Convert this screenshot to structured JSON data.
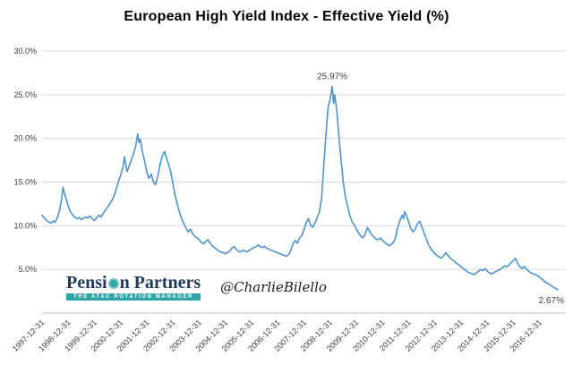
{
  "chart_data": {
    "type": "line",
    "title": "European High Yield Index - Effective Yield (%)",
    "xlabel": "",
    "ylabel": "",
    "ylim": [
      0,
      30
    ],
    "xlim": [
      1998.0,
      2018.0
    ],
    "grid": true,
    "legend": "none",
    "line_color": "#4F93CE",
    "grid_color": "#D9D9D9",
    "axis_color": "#BFBFBF",
    "tick_label_color": "#404040",
    "y_tick_labels": [
      "5.0%",
      "10.0%",
      "15.0%",
      "20.0%",
      "25.0%",
      "30.0%"
    ],
    "x_tick_labels": [
      "1997-12-31",
      "1998-12-31",
      "1999-12-31",
      "2000-12-31",
      "2001-12-31",
      "2002-12-31",
      "2003-12-31",
      "2004-12-31",
      "2005-12-31",
      "2006-12-31",
      "2007-12-31",
      "2008-12-31",
      "2009-12-31",
      "2010-12-31",
      "2011-12-31",
      "2012-12-31",
      "2013-12-31",
      "2014-12-31",
      "2015-12-31",
      "2016-12-31"
    ],
    "annotations": [
      {
        "text": "25.97%",
        "x": 2009.08,
        "y": 25.97,
        "position": "above"
      },
      {
        "text": "2.67%",
        "x": 2017.7,
        "y": 2.67,
        "position": "below-right"
      }
    ],
    "series": [
      {
        "name": "Effective Yield",
        "color": "#4F93CE",
        "points": [
          [
            1998.0,
            11.2
          ],
          [
            1998.08,
            10.9
          ],
          [
            1998.17,
            10.6
          ],
          [
            1998.25,
            10.45
          ],
          [
            1998.33,
            10.3
          ],
          [
            1998.42,
            10.55
          ],
          [
            1998.5,
            10.4
          ],
          [
            1998.58,
            10.9
          ],
          [
            1998.67,
            11.8
          ],
          [
            1998.75,
            13.1
          ],
          [
            1998.8,
            14.4
          ],
          [
            1998.85,
            13.7
          ],
          [
            1998.92,
            13.1
          ],
          [
            1999.0,
            12.2
          ],
          [
            1999.08,
            11.6
          ],
          [
            1999.17,
            11.2
          ],
          [
            1999.25,
            11.0
          ],
          [
            1999.33,
            10.8
          ],
          [
            1999.42,
            10.95
          ],
          [
            1999.5,
            10.7
          ],
          [
            1999.58,
            10.85
          ],
          [
            1999.67,
            11.0
          ],
          [
            1999.75,
            10.9
          ],
          [
            1999.83,
            11.1
          ],
          [
            1999.92,
            10.8
          ],
          [
            2000.0,
            10.6
          ],
          [
            2000.08,
            10.9
          ],
          [
            2000.17,
            11.2
          ],
          [
            2000.25,
            11.0
          ],
          [
            2000.33,
            11.4
          ],
          [
            2000.42,
            11.8
          ],
          [
            2000.5,
            12.1
          ],
          [
            2000.58,
            12.5
          ],
          [
            2000.67,
            12.9
          ],
          [
            2000.75,
            13.4
          ],
          [
            2000.83,
            14.2
          ],
          [
            2000.92,
            15.1
          ],
          [
            2001.0,
            15.8
          ],
          [
            2001.08,
            16.6
          ],
          [
            2001.15,
            17.9
          ],
          [
            2001.21,
            16.7
          ],
          [
            2001.25,
            16.2
          ],
          [
            2001.33,
            16.9
          ],
          [
            2001.42,
            17.6
          ],
          [
            2001.5,
            18.3
          ],
          [
            2001.58,
            19.2
          ],
          [
            2001.65,
            20.5
          ],
          [
            2001.7,
            19.5
          ],
          [
            2001.75,
            19.9
          ],
          [
            2001.83,
            18.5
          ],
          [
            2001.92,
            17.3
          ],
          [
            2002.0,
            16.1
          ],
          [
            2002.08,
            15.4
          ],
          [
            2002.17,
            15.9
          ],
          [
            2002.25,
            15.0
          ],
          [
            2002.33,
            14.7
          ],
          [
            2002.42,
            15.7
          ],
          [
            2002.5,
            16.9
          ],
          [
            2002.58,
            17.9
          ],
          [
            2002.67,
            18.5
          ],
          [
            2002.75,
            17.8
          ],
          [
            2002.83,
            17.0
          ],
          [
            2002.92,
            16.1
          ],
          [
            2003.0,
            14.7
          ],
          [
            2003.08,
            13.5
          ],
          [
            2003.17,
            12.4
          ],
          [
            2003.25,
            11.5
          ],
          [
            2003.33,
            10.8
          ],
          [
            2003.42,
            10.2
          ],
          [
            2003.5,
            9.7
          ],
          [
            2003.58,
            9.3
          ],
          [
            2003.67,
            9.6
          ],
          [
            2003.75,
            9.1
          ],
          [
            2003.83,
            8.8
          ],
          [
            2003.92,
            8.6
          ],
          [
            2004.0,
            8.4
          ],
          [
            2004.08,
            8.1
          ],
          [
            2004.17,
            7.9
          ],
          [
            2004.25,
            8.2
          ],
          [
            2004.33,
            8.4
          ],
          [
            2004.42,
            8.0
          ],
          [
            2004.5,
            7.7
          ],
          [
            2004.58,
            7.5
          ],
          [
            2004.67,
            7.3
          ],
          [
            2004.75,
            7.1
          ],
          [
            2004.83,
            7.0
          ],
          [
            2004.92,
            6.9
          ],
          [
            2005.0,
            6.8
          ],
          [
            2005.08,
            6.95
          ],
          [
            2005.17,
            7.1
          ],
          [
            2005.25,
            7.45
          ],
          [
            2005.33,
            7.6
          ],
          [
            2005.42,
            7.3
          ],
          [
            2005.5,
            7.1
          ],
          [
            2005.58,
            7.0
          ],
          [
            2005.67,
            7.2
          ],
          [
            2005.75,
            7.1
          ],
          [
            2005.83,
            7.0
          ],
          [
            2005.92,
            7.2
          ],
          [
            2006.0,
            7.35
          ],
          [
            2006.08,
            7.5
          ],
          [
            2006.17,
            7.6
          ],
          [
            2006.25,
            7.8
          ],
          [
            2006.33,
            7.6
          ],
          [
            2006.42,
            7.5
          ],
          [
            2006.5,
            7.65
          ],
          [
            2006.58,
            7.4
          ],
          [
            2006.67,
            7.3
          ],
          [
            2006.75,
            7.2
          ],
          [
            2006.83,
            7.1
          ],
          [
            2006.92,
            7.0
          ],
          [
            2007.0,
            6.9
          ],
          [
            2007.08,
            6.8
          ],
          [
            2007.17,
            6.7
          ],
          [
            2007.25,
            6.6
          ],
          [
            2007.33,
            6.5
          ],
          [
            2007.42,
            6.7
          ],
          [
            2007.5,
            7.2
          ],
          [
            2007.58,
            7.9
          ],
          [
            2007.67,
            8.3
          ],
          [
            2007.75,
            8.0
          ],
          [
            2007.83,
            8.6
          ],
          [
            2007.92,
            8.9
          ],
          [
            2008.0,
            9.5
          ],
          [
            2008.08,
            10.3
          ],
          [
            2008.17,
            10.8
          ],
          [
            2008.25,
            10.1
          ],
          [
            2008.33,
            9.8
          ],
          [
            2008.42,
            10.3
          ],
          [
            2008.5,
            10.9
          ],
          [
            2008.58,
            11.5
          ],
          [
            2008.67,
            13.0
          ],
          [
            2008.75,
            16.5
          ],
          [
            2008.83,
            20.0
          ],
          [
            2008.92,
            23.5
          ],
          [
            2009.0,
            24.5
          ],
          [
            2009.08,
            25.97
          ],
          [
            2009.13,
            24.0
          ],
          [
            2009.17,
            25.0
          ],
          [
            2009.25,
            23.3
          ],
          [
            2009.33,
            20.4
          ],
          [
            2009.42,
            17.5
          ],
          [
            2009.5,
            15.0
          ],
          [
            2009.58,
            13.3
          ],
          [
            2009.67,
            12.2
          ],
          [
            2009.75,
            11.2
          ],
          [
            2009.83,
            10.5
          ],
          [
            2009.92,
            10.1
          ],
          [
            2010.0,
            9.6
          ],
          [
            2010.08,
            9.2
          ],
          [
            2010.17,
            8.8
          ],
          [
            2010.25,
            8.6
          ],
          [
            2010.33,
            9.0
          ],
          [
            2010.42,
            9.8
          ],
          [
            2010.5,
            9.4
          ],
          [
            2010.58,
            9.0
          ],
          [
            2010.67,
            8.7
          ],
          [
            2010.75,
            8.5
          ],
          [
            2010.83,
            8.4
          ],
          [
            2010.92,
            8.6
          ],
          [
            2011.0,
            8.3
          ],
          [
            2011.08,
            8.1
          ],
          [
            2011.17,
            7.9
          ],
          [
            2011.25,
            7.7
          ],
          [
            2011.33,
            7.85
          ],
          [
            2011.42,
            8.1
          ],
          [
            2011.5,
            8.7
          ],
          [
            2011.58,
            9.8
          ],
          [
            2011.67,
            10.6
          ],
          [
            2011.75,
            11.2
          ],
          [
            2011.8,
            10.8
          ],
          [
            2011.85,
            11.6
          ],
          [
            2011.92,
            11.1
          ],
          [
            2012.0,
            10.4
          ],
          [
            2012.08,
            9.7
          ],
          [
            2012.17,
            9.3
          ],
          [
            2012.25,
            9.6
          ],
          [
            2012.33,
            10.2
          ],
          [
            2012.42,
            10.5
          ],
          [
            2012.5,
            9.9
          ],
          [
            2012.58,
            9.2
          ],
          [
            2012.67,
            8.5
          ],
          [
            2012.75,
            7.9
          ],
          [
            2012.83,
            7.4
          ],
          [
            2012.92,
            7.1
          ],
          [
            2013.0,
            6.8
          ],
          [
            2013.08,
            6.6
          ],
          [
            2013.17,
            6.4
          ],
          [
            2013.25,
            6.3
          ],
          [
            2013.33,
            6.55
          ],
          [
            2013.42,
            6.9
          ],
          [
            2013.5,
            6.6
          ],
          [
            2013.58,
            6.3
          ],
          [
            2013.67,
            6.1
          ],
          [
            2013.75,
            5.9
          ],
          [
            2013.83,
            5.7
          ],
          [
            2013.92,
            5.5
          ],
          [
            2014.0,
            5.3
          ],
          [
            2014.08,
            5.1
          ],
          [
            2014.17,
            4.9
          ],
          [
            2014.25,
            4.7
          ],
          [
            2014.33,
            4.6
          ],
          [
            2014.42,
            4.5
          ],
          [
            2014.5,
            4.4
          ],
          [
            2014.58,
            4.6
          ],
          [
            2014.67,
            4.8
          ],
          [
            2014.75,
            5.0
          ],
          [
            2014.83,
            4.85
          ],
          [
            2014.92,
            5.1
          ],
          [
            2015.0,
            4.8
          ],
          [
            2015.08,
            4.6
          ],
          [
            2015.17,
            4.5
          ],
          [
            2015.25,
            4.65
          ],
          [
            2015.33,
            4.75
          ],
          [
            2015.42,
            4.9
          ],
          [
            2015.5,
            5.0
          ],
          [
            2015.58,
            5.2
          ],
          [
            2015.67,
            5.4
          ],
          [
            2015.75,
            5.3
          ],
          [
            2015.83,
            5.5
          ],
          [
            2015.92,
            5.8
          ],
          [
            2016.0,
            6.0
          ],
          [
            2016.08,
            6.3
          ],
          [
            2016.13,
            5.9
          ],
          [
            2016.17,
            5.6
          ],
          [
            2016.25,
            5.3
          ],
          [
            2016.33,
            5.1
          ],
          [
            2016.42,
            5.35
          ],
          [
            2016.5,
            5.0
          ],
          [
            2016.58,
            4.8
          ],
          [
            2016.67,
            4.6
          ],
          [
            2016.75,
            4.5
          ],
          [
            2016.83,
            4.4
          ],
          [
            2016.92,
            4.3
          ],
          [
            2017.0,
            4.1
          ],
          [
            2017.1,
            3.85
          ],
          [
            2017.2,
            3.6
          ],
          [
            2017.3,
            3.4
          ],
          [
            2017.4,
            3.2
          ],
          [
            2017.5,
            3.0
          ],
          [
            2017.6,
            2.85
          ],
          [
            2017.7,
            2.67
          ]
        ]
      }
    ]
  },
  "watermark": {
    "brand_prefix": "Pensi",
    "brand_suffix": "n Partners",
    "tagline": "THE ATAC ROTATION MANAGER",
    "handle": "@CharlieBilello",
    "brand_color": "#1F3A5F",
    "accent_color": "#2FA3A8"
  }
}
